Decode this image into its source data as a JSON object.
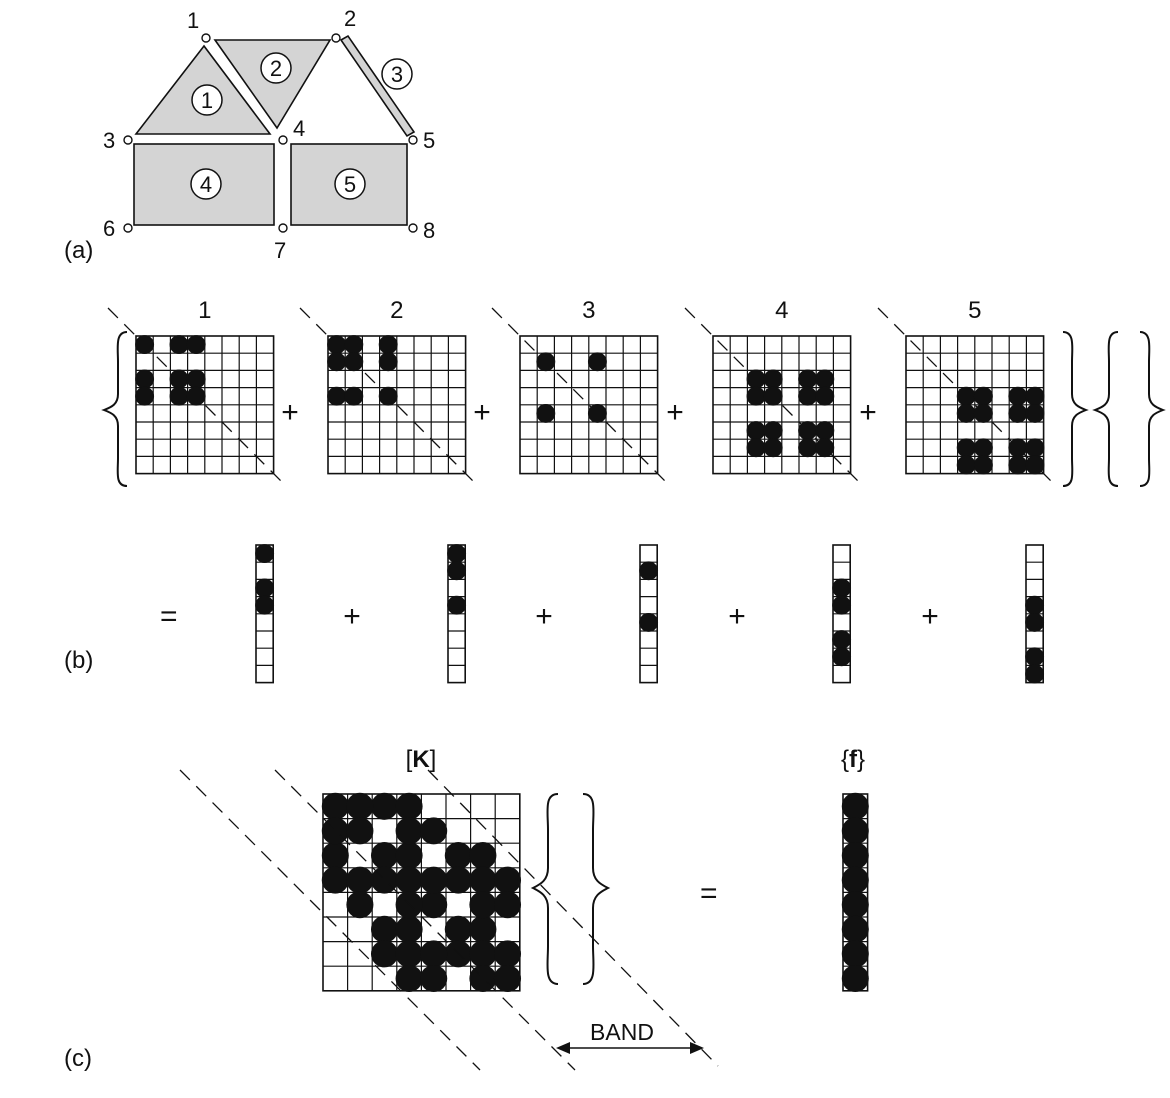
{
  "panels": {
    "a": {
      "label": "(a)"
    },
    "b": {
      "label": "(b)"
    },
    "c": {
      "label": "(c)"
    }
  },
  "mesh": {
    "nodes": [
      {
        "id": "1",
        "label": "1"
      },
      {
        "id": "2",
        "label": "2"
      },
      {
        "id": "3",
        "label": "3"
      },
      {
        "id": "4",
        "label": "4"
      },
      {
        "id": "5",
        "label": "5"
      },
      {
        "id": "6",
        "label": "6"
      },
      {
        "id": "7",
        "label": "7"
      },
      {
        "id": "8",
        "label": "8"
      }
    ],
    "elements": [
      {
        "id": "1",
        "label": "1",
        "kind": "triangle",
        "nodes": [
          "1",
          "3",
          "4"
        ]
      },
      {
        "id": "2",
        "label": "2",
        "kind": "triangle",
        "nodes": [
          "1",
          "2",
          "4"
        ]
      },
      {
        "id": "3",
        "label": "3",
        "kind": "bar",
        "nodes": [
          "2",
          "5"
        ]
      },
      {
        "id": "4",
        "label": "4",
        "kind": "quad",
        "nodes": [
          "3",
          "4",
          "7",
          "6"
        ]
      },
      {
        "id": "5",
        "label": "5",
        "kind": "quad",
        "nodes": [
          "4",
          "5",
          "8",
          "7"
        ]
      }
    ]
  },
  "element_matrices": [
    {
      "label": "1",
      "nodes": [
        1,
        3,
        4
      ]
    },
    {
      "label": "2",
      "nodes": [
        1,
        2,
        4
      ]
    },
    {
      "label": "3",
      "nodes": [
        2,
        5
      ]
    },
    {
      "label": "4",
      "nodes": [
        3,
        4,
        6,
        7
      ]
    },
    {
      "label": "5",
      "nodes": [
        4,
        5,
        7,
        8
      ]
    }
  ],
  "operators": {
    "plus": "+",
    "equals": "="
  },
  "global": {
    "matrix_label": "[K]",
    "matrix_letter": "K",
    "vector_label": "{f}",
    "vector_letter": "f",
    "band_label": "BAND"
  },
  "colors": {
    "element_fill": "#d4d4d4",
    "ink": "#111111"
  }
}
